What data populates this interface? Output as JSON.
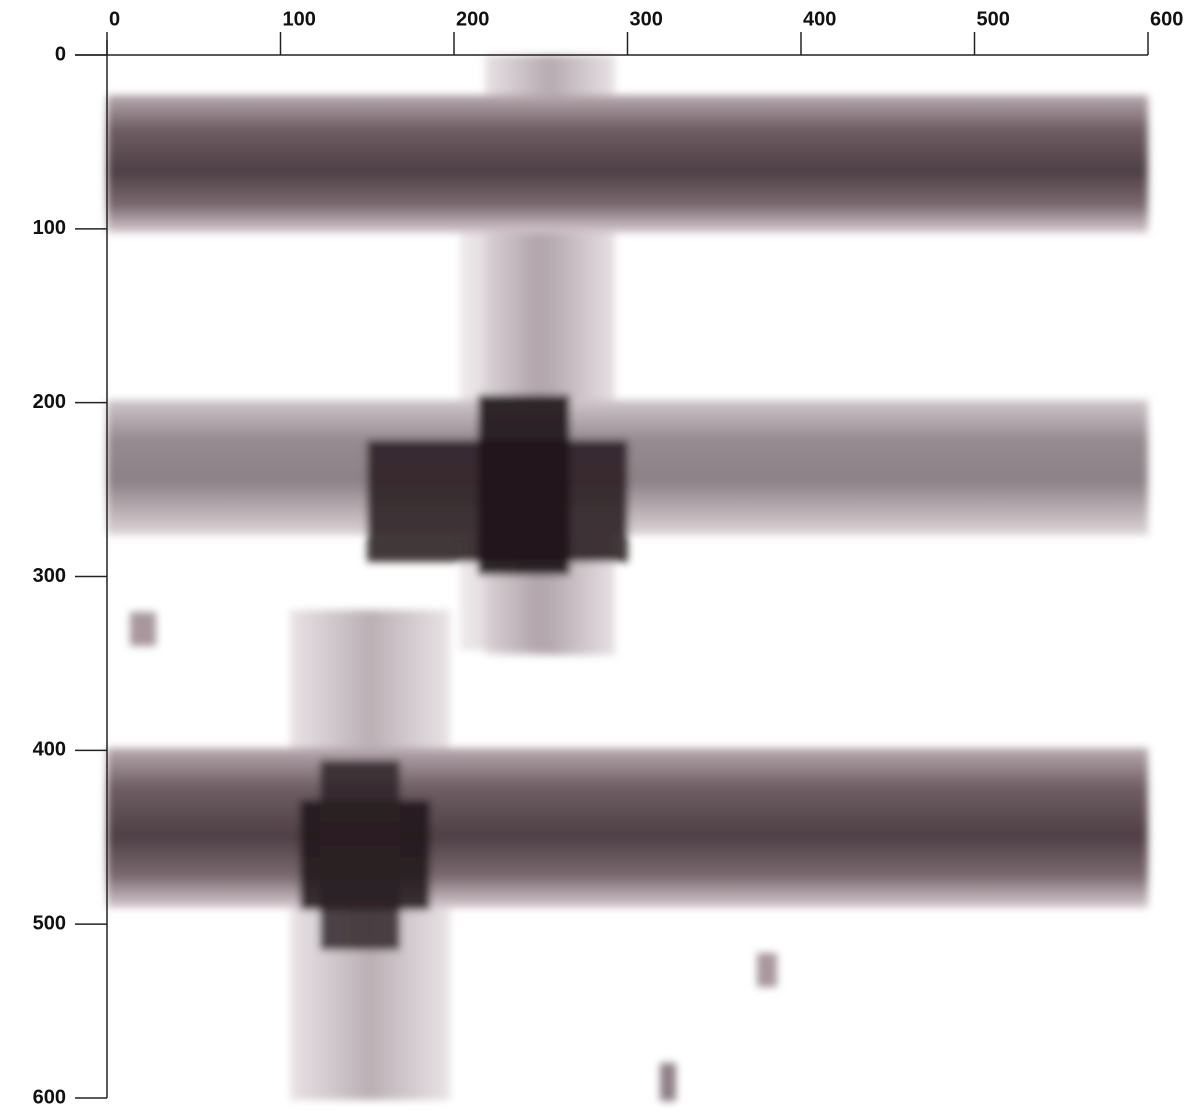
{
  "chart_data": {
    "type": "image",
    "xlim": [
      0,
      600
    ],
    "ylim": [
      0,
      600
    ],
    "xticks": [
      0,
      100,
      200,
      300,
      400,
      500,
      600
    ],
    "yticks": [
      0,
      100,
      200,
      300,
      400,
      500,
      600
    ]
  }
}
